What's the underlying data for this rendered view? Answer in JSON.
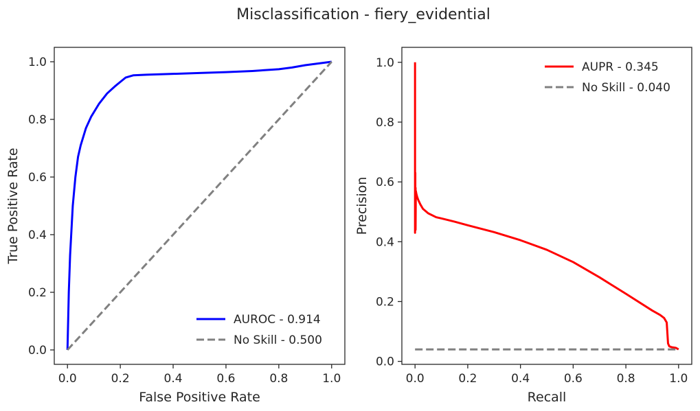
{
  "figure": {
    "title": "Misclassification - fiery_evidential"
  },
  "chart_data": [
    {
      "type": "line",
      "xlabel": "False Positive Rate",
      "ylabel": "True Positive Rate",
      "xlim": [
        -0.05,
        1.05
      ],
      "ylim": [
        -0.05,
        1.05
      ],
      "xticks": [
        0.0,
        0.2,
        0.4,
        0.6,
        0.8,
        1.0
      ],
      "yticks": [
        0.0,
        0.2,
        0.4,
        0.6,
        0.8,
        1.0
      ],
      "xtick_labels": [
        "0.0",
        "0.2",
        "0.4",
        "0.6",
        "0.8",
        "1.0"
      ],
      "ytick_labels": [
        "0.0",
        "0.2",
        "0.4",
        "0.6",
        "0.8",
        "1.0"
      ],
      "grid": false,
      "legend": "lower-right",
      "series": [
        {
          "name": "AUROC - 0.914",
          "color": "#0000ff",
          "dash": "solid",
          "x": [
            0.0,
            0.005,
            0.01,
            0.02,
            0.03,
            0.04,
            0.05,
            0.07,
            0.09,
            0.12,
            0.15,
            0.18,
            0.2,
            0.22,
            0.25,
            0.3,
            0.4,
            0.5,
            0.6,
            0.7,
            0.8,
            0.85,
            0.9,
            0.95,
            1.0
          ],
          "y": [
            0.0,
            0.2,
            0.33,
            0.5,
            0.6,
            0.67,
            0.71,
            0.77,
            0.81,
            0.855,
            0.89,
            0.915,
            0.93,
            0.945,
            0.953,
            0.955,
            0.958,
            0.961,
            0.964,
            0.968,
            0.974,
            0.98,
            0.988,
            0.994,
            1.0
          ]
        },
        {
          "name": "No Skill - 0.500",
          "color": "#808080",
          "dash": "dashed",
          "x": [
            0.0,
            1.0
          ],
          "y": [
            0.0,
            1.0
          ]
        }
      ]
    },
    {
      "type": "line",
      "xlabel": "Recall",
      "ylabel": "Precision",
      "xlim": [
        -0.05,
        1.05
      ],
      "ylim": [
        -0.01,
        1.05
      ],
      "xticks": [
        0.0,
        0.2,
        0.4,
        0.6,
        0.8,
        1.0
      ],
      "yticks": [
        0.0,
        0.2,
        0.4,
        0.6,
        0.8,
        1.0
      ],
      "xtick_labels": [
        "0.0",
        "0.2",
        "0.4",
        "0.6",
        "0.8",
        "1.0"
      ],
      "ytick_labels": [
        "0.0",
        "0.2",
        "0.4",
        "0.6",
        "0.8",
        "1.0"
      ],
      "grid": false,
      "legend": "upper-right",
      "series": [
        {
          "name": "AUPR - 0.345",
          "color": "#ff0000",
          "dash": "solid",
          "x": [
            0.0,
            0.0,
            0.001,
            0.001,
            0.002,
            0.002,
            0.003,
            0.005,
            0.008,
            0.012,
            0.02,
            0.03,
            0.05,
            0.08,
            0.1,
            0.15,
            0.2,
            0.3,
            0.4,
            0.5,
            0.6,
            0.7,
            0.8,
            0.9,
            0.93,
            0.945,
            0.955,
            0.96,
            0.965,
            0.975,
            0.99,
            1.0
          ],
          "y": [
            1.0,
            0.43,
            0.63,
            0.45,
            0.58,
            0.44,
            0.57,
            0.56,
            0.55,
            0.54,
            0.525,
            0.51,
            0.495,
            0.482,
            0.478,
            0.467,
            0.455,
            0.432,
            0.405,
            0.373,
            0.332,
            0.281,
            0.226,
            0.17,
            0.155,
            0.145,
            0.13,
            0.06,
            0.05,
            0.047,
            0.045,
            0.04
          ]
        },
        {
          "name": "No Skill - 0.040",
          "color": "#808080",
          "dash": "dashed",
          "x": [
            0.0,
            1.0
          ],
          "y": [
            0.04,
            0.04
          ]
        }
      ]
    }
  ]
}
